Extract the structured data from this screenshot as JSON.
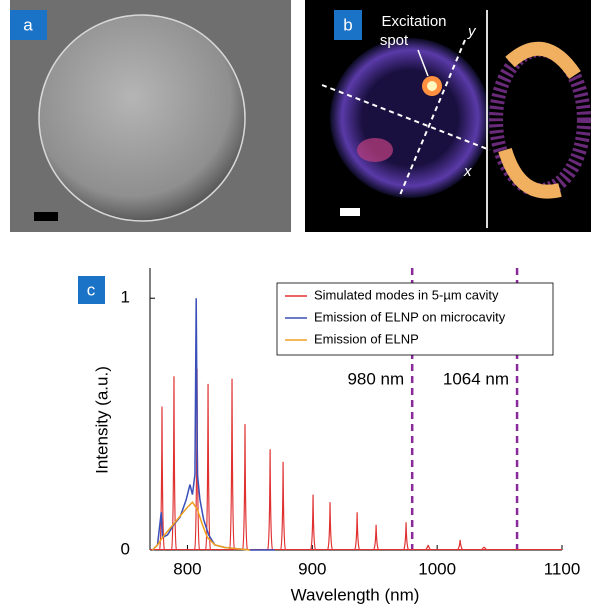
{
  "panels": {
    "a": {
      "label": "a"
    },
    "b": {
      "label": "b",
      "excitation": [
        "Excitation",
        "spot"
      ],
      "axis_y": "y",
      "axis_x": "x"
    }
  },
  "chart_data": {
    "type": "line",
    "panel_label": "c",
    "xlabel": "Wavelength (nm)",
    "ylabel": "Intensity (a.u.)",
    "xlim": [
      770,
      1100
    ],
    "ylim": [
      0,
      1.12
    ],
    "xticks": [
      800,
      900,
      1000,
      1100
    ],
    "yticks": [
      0,
      1
    ],
    "legend": "upper right",
    "series": [
      {
        "name": "Simulated modes in 5-µm cavity",
        "color": "#e03030",
        "mode": "peaks",
        "x": [
          779.6,
          789.2,
          807.7,
          816.5,
          835.7,
          846.1,
          866.2,
          876.6,
          900.6,
          914.2,
          935.9,
          951.1,
          975.1,
          992.8,
          1018.4,
          1037.6
        ],
        "values": [
          0.57,
          0.69,
          0.72,
          0.66,
          0.68,
          0.5,
          0.4,
          0.35,
          0.22,
          0.19,
          0.15,
          0.1,
          0.11,
          0.02,
          0.04,
          0.01
        ]
      },
      {
        "name": "Emission of ELNP on microcavity",
        "color": "#3b4fb8",
        "x": [
          772,
          776,
          779,
          780,
          784,
          789,
          794,
          799,
          802,
          804,
          806,
          807,
          808,
          810,
          813,
          817,
          822,
          830,
          850,
          870
        ],
        "values": [
          0,
          0.02,
          0.15,
          0.05,
          0.06,
          0.1,
          0.13,
          0.2,
          0.26,
          0.22,
          0.3,
          1.0,
          0.3,
          0.2,
          0.12,
          0.06,
          0.02,
          0.01,
          0,
          0
        ]
      },
      {
        "name": "Emission of ELNP",
        "color": "#f0a020",
        "x": [
          772,
          776,
          780,
          785,
          790,
          795,
          800,
          804,
          808,
          812,
          816,
          822,
          830,
          840,
          850
        ],
        "values": [
          0,
          0.02,
          0.05,
          0.08,
          0.11,
          0.14,
          0.17,
          0.19,
          0.16,
          0.1,
          0.05,
          0.02,
          0.01,
          0.005,
          0
        ]
      }
    ],
    "vlines": {
      "x": [
        980,
        1064
      ],
      "labels": [
        "980 nm",
        "1064 nm"
      ],
      "color": "#8a2a9a"
    }
  }
}
